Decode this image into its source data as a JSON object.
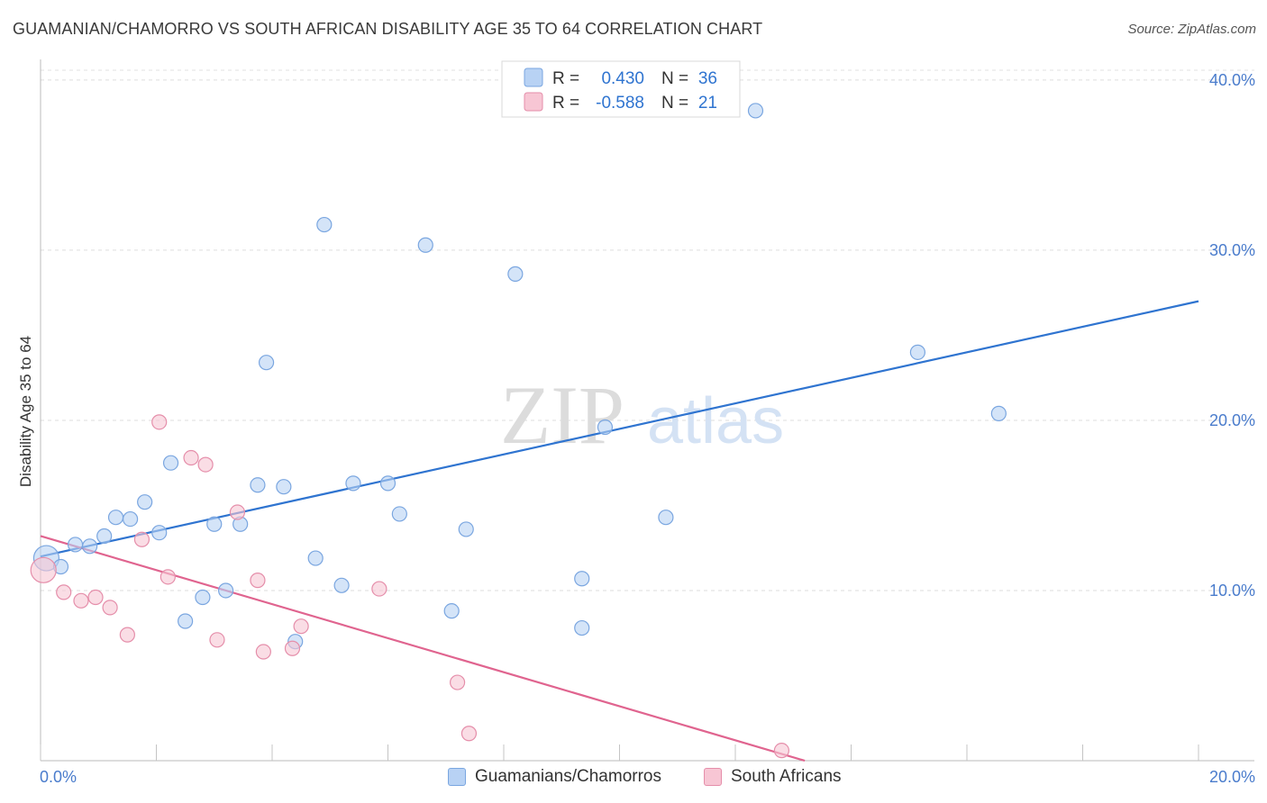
{
  "title": "GUAMANIAN/CHAMORRO VS SOUTH AFRICAN DISABILITY AGE 35 TO 64 CORRELATION CHART",
  "source": "Source: ZipAtlas.com",
  "watermark": {
    "zip": "ZIP",
    "atlas": "atlas"
  },
  "colors": {
    "blue_fill": "#b8d2f4",
    "blue_stroke": "#7aa6e0",
    "blue_line": "#2f74d0",
    "pink_fill": "#f7c6d4",
    "pink_stroke": "#e58eaa",
    "pink_line": "#e0648f",
    "tick_text": "#4a7ccc"
  },
  "legend": {
    "rows": [
      {
        "r_label": "R =",
        "r_value": "0.430",
        "n_label": "N =",
        "n_value": "36"
      },
      {
        "r_label": "R =",
        "r_value": "-0.588",
        "n_label": "N =",
        "n_value": "21"
      }
    ]
  },
  "bottom_legend": [
    "Guamanians/Chamorros",
    "South Africans"
  ],
  "chart_data": {
    "type": "scatter",
    "xlabel": "",
    "ylabel": "Disability Age 35 to 64",
    "xlim": [
      0,
      20
    ],
    "ylim": [
      0,
      41
    ],
    "x_tick_labels": [
      {
        "value": 0,
        "label": "0.0%"
      },
      {
        "value": 20,
        "label": "20.0%"
      }
    ],
    "y_tick_labels": [
      {
        "value": 10,
        "label": "10.0%"
      },
      {
        "value": 20,
        "label": "20.0%"
      },
      {
        "value": 30,
        "label": "30.0%"
      },
      {
        "value": 40,
        "label": "40.0%"
      }
    ],
    "x_minor_ticks": [
      0,
      2,
      4,
      6,
      8,
      10,
      12,
      14,
      16,
      18,
      20
    ],
    "grid": true,
    "series": [
      {
        "name": "Guamanians/Chamorros",
        "color": "blue",
        "r": 0.43,
        "n": 36,
        "trend": {
          "x": [
            0,
            20
          ],
          "y": [
            12.0,
            27.0
          ]
        },
        "points": [
          [
            0.1,
            11.9
          ],
          [
            0.35,
            11.4
          ],
          [
            0.6,
            12.7
          ],
          [
            0.85,
            12.6
          ],
          [
            1.1,
            13.2
          ],
          [
            1.3,
            14.3
          ],
          [
            1.55,
            14.2
          ],
          [
            1.8,
            15.2
          ],
          [
            2.05,
            13.4
          ],
          [
            2.25,
            17.5
          ],
          [
            2.5,
            8.2
          ],
          [
            2.8,
            9.6
          ],
          [
            3.0,
            13.9
          ],
          [
            3.2,
            10.0
          ],
          [
            3.45,
            13.9
          ],
          [
            3.75,
            16.2
          ],
          [
            3.9,
            23.4
          ],
          [
            4.2,
            16.1
          ],
          [
            4.4,
            7.0
          ],
          [
            4.75,
            11.9
          ],
          [
            4.9,
            31.5
          ],
          [
            5.2,
            10.3
          ],
          [
            5.4,
            16.3
          ],
          [
            6.0,
            16.3
          ],
          [
            6.2,
            14.5
          ],
          [
            6.65,
            30.3
          ],
          [
            7.1,
            8.8
          ],
          [
            7.35,
            13.6
          ],
          [
            8.2,
            28.6
          ],
          [
            9.35,
            10.7
          ],
          [
            9.35,
            7.8
          ],
          [
            9.75,
            19.6
          ],
          [
            10.8,
            14.3
          ],
          [
            12.35,
            38.2
          ],
          [
            15.15,
            24.0
          ],
          [
            16.55,
            20.4
          ]
        ]
      },
      {
        "name": "South Africans",
        "color": "pink",
        "r": -0.588,
        "n": 21,
        "trend": {
          "x": [
            0,
            13.2
          ],
          "y": [
            13.2,
            0
          ]
        },
        "points": [
          [
            0.05,
            11.2
          ],
          [
            0.4,
            9.9
          ],
          [
            0.7,
            9.4
          ],
          [
            0.95,
            9.6
          ],
          [
            1.2,
            9.0
          ],
          [
            1.5,
            7.4
          ],
          [
            1.75,
            13.0
          ],
          [
            2.05,
            19.9
          ],
          [
            2.2,
            10.8
          ],
          [
            2.6,
            17.8
          ],
          [
            2.85,
            17.4
          ],
          [
            3.05,
            7.1
          ],
          [
            3.4,
            14.6
          ],
          [
            3.75,
            10.6
          ],
          [
            3.85,
            6.4
          ],
          [
            4.35,
            6.6
          ],
          [
            4.5,
            7.9
          ],
          [
            5.85,
            10.1
          ],
          [
            7.2,
            4.6
          ],
          [
            7.4,
            1.6
          ],
          [
            12.8,
            0.6
          ]
        ]
      }
    ]
  }
}
